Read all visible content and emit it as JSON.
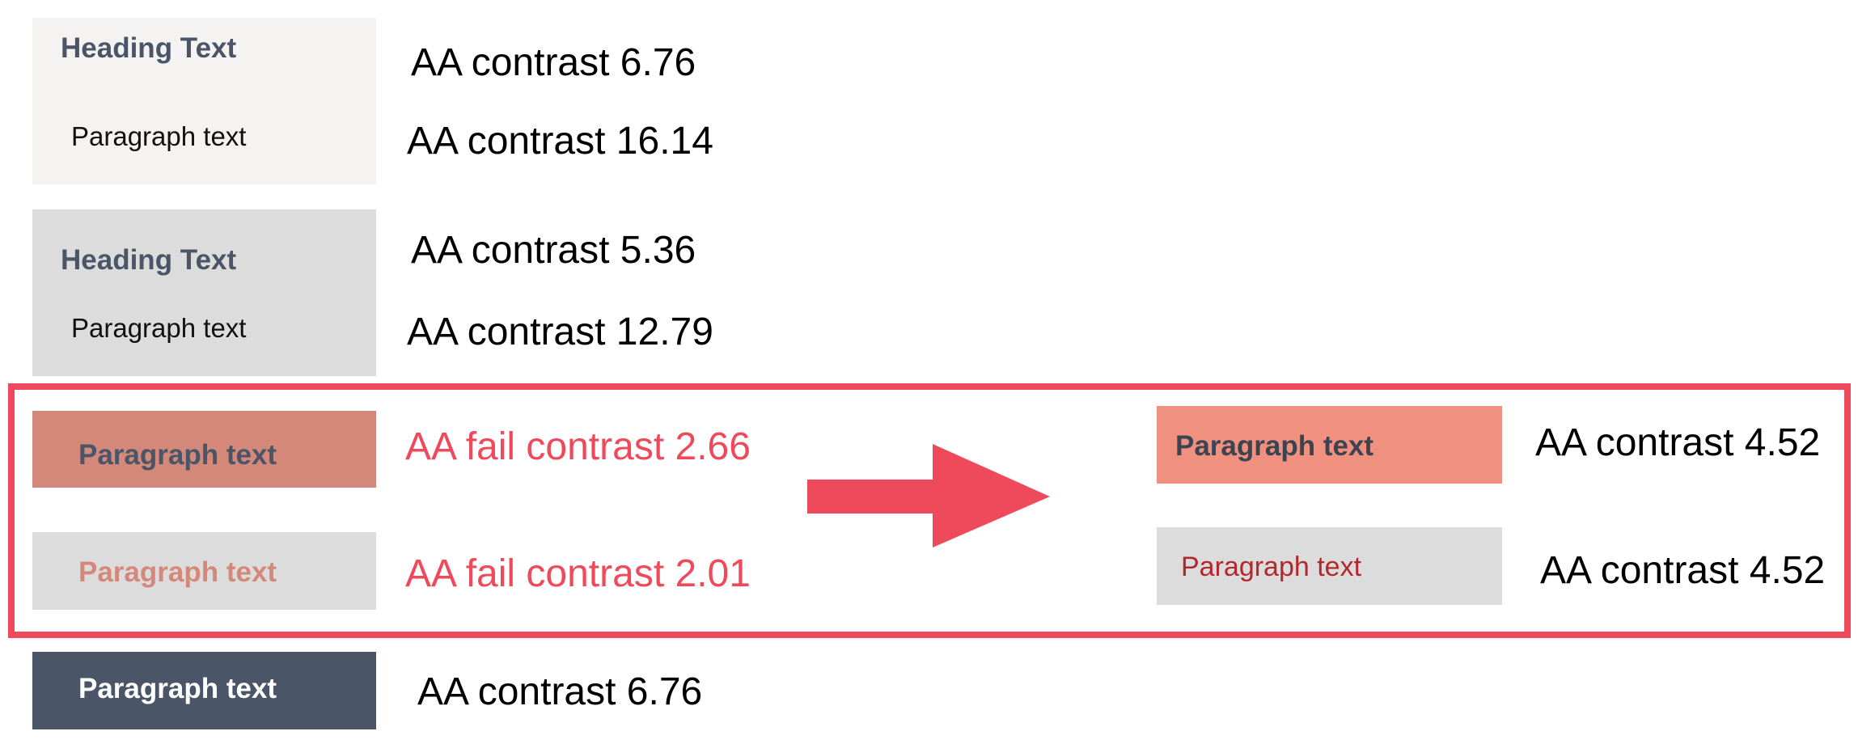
{
  "colors": {
    "light_bg": "#f4f3f1",
    "gray_bg": "#dcdcdc",
    "salmon_bg": "#d4887a",
    "salmon_light_bg": "#f0907f",
    "slate_bg": "#4a5568",
    "slate_text": "#4a5568",
    "salmon_text": "#d4887a",
    "red_text": "#b3282c",
    "accent_red": "#ef4a5b"
  },
  "group1": {
    "heading": "Heading Text",
    "paragraph": "Paragraph text",
    "heading_contrast": "AA contrast 6.76",
    "paragraph_contrast": "AA contrast 16.14"
  },
  "group2": {
    "heading": "Heading Text",
    "paragraph": "Paragraph text",
    "heading_contrast": "AA contrast 5.36",
    "paragraph_contrast": "AA contrast 12.79"
  },
  "failing": {
    "swatch1_text": "Paragraph text",
    "swatch1_contrast": "AA fail contrast 2.66",
    "swatch2_text": "Paragraph text",
    "swatch2_contrast": "AA fail contrast 2.01"
  },
  "fixed": {
    "swatch1_text": "Paragraph text",
    "swatch1_contrast": "AA contrast 4.52",
    "swatch2_text": "Paragraph text",
    "swatch2_contrast": "AA contrast 4.52"
  },
  "bottom": {
    "swatch_text": "Paragraph text",
    "contrast": "AA contrast 6.76"
  },
  "icons": {
    "arrow": "right-arrow-icon"
  }
}
